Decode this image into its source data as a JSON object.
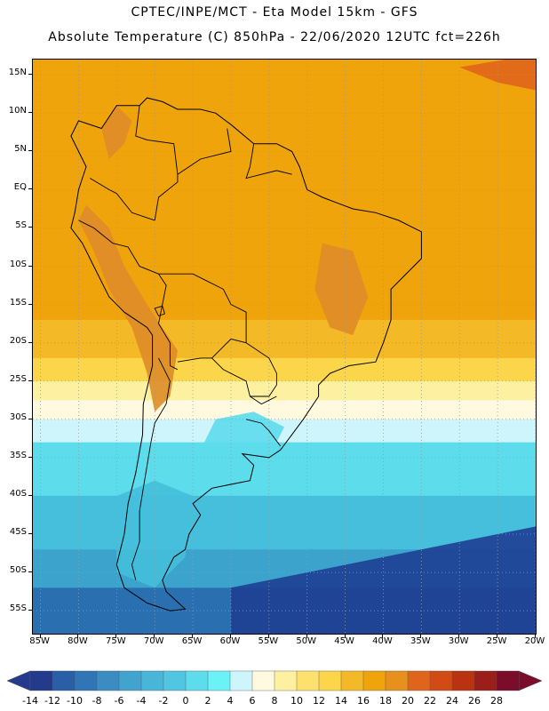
{
  "header": {
    "line1": "CPTEC/INPE/MCT  -   Eta Model 15km  -  GFS",
    "line2": "Absolute Temperature (C) 850hPa - 22/06/2020 12UTC fct=226h"
  },
  "map": {
    "lon_range": [
      -86,
      -20
    ],
    "lat_range": [
      -58,
      17
    ],
    "lat_ticks": [
      {
        "value": 15,
        "label": "15N"
      },
      {
        "value": 10,
        "label": "10N"
      },
      {
        "value": 5,
        "label": "5N"
      },
      {
        "value": 0,
        "label": "EQ"
      },
      {
        "value": -5,
        "label": "5S"
      },
      {
        "value": -10,
        "label": "10S"
      },
      {
        "value": -15,
        "label": "15S"
      },
      {
        "value": -20,
        "label": "20S"
      },
      {
        "value": -25,
        "label": "25S"
      },
      {
        "value": -30,
        "label": "30S"
      },
      {
        "value": -35,
        "label": "35S"
      },
      {
        "value": -40,
        "label": "40S"
      },
      {
        "value": -45,
        "label": "45S"
      },
      {
        "value": -50,
        "label": "50S"
      },
      {
        "value": -55,
        "label": "55S"
      }
    ],
    "lon_ticks": [
      {
        "value": -85,
        "label": "85W"
      },
      {
        "value": -80,
        "label": "80W"
      },
      {
        "value": -75,
        "label": "75W"
      },
      {
        "value": -70,
        "label": "70W"
      },
      {
        "value": -65,
        "label": "65W"
      },
      {
        "value": -60,
        "label": "60W"
      },
      {
        "value": -55,
        "label": "55W"
      },
      {
        "value": -50,
        "label": "50W"
      },
      {
        "value": -45,
        "label": "45W"
      },
      {
        "value": -40,
        "label": "40W"
      },
      {
        "value": -35,
        "label": "35W"
      },
      {
        "value": -30,
        "label": "30W"
      },
      {
        "value": -25,
        "label": "25W"
      },
      {
        "value": -20,
        "label": "20W"
      }
    ],
    "temperature_bands": [
      {
        "lat_north": 17,
        "lat_south": -17,
        "color": "#f0a40c"
      },
      {
        "lat_north": -17,
        "lat_south": -22,
        "color": "#f4b927"
      },
      {
        "lat_north": -22,
        "lat_south": -25,
        "color": "#fcd64a"
      },
      {
        "lat_north": -25,
        "lat_south": -27.5,
        "color": "#fdf0a0"
      },
      {
        "lat_north": -27.5,
        "lat_south": -30,
        "color": "#fff9e0"
      },
      {
        "lat_north": -30,
        "lat_south": -33,
        "color": "#cff5fc"
      },
      {
        "lat_north": -33,
        "lat_south": -40,
        "color": "#5ddcec"
      },
      {
        "lat_north": -40,
        "lat_south": -47,
        "color": "#45bfdc"
      },
      {
        "lat_north": -47,
        "lat_south": -52,
        "color": "#3ba3cc"
      },
      {
        "lat_north": -52,
        "lat_south": -58,
        "color": "#2a6fb0"
      }
    ],
    "features": [
      {
        "name": "andes-high-north",
        "color": "#de8c28",
        "points": [
          [
            -79,
            -2
          ],
          [
            -76,
            -5
          ],
          [
            -74,
            -10
          ],
          [
            -71,
            -15
          ],
          [
            -69,
            -18
          ],
          [
            -67,
            -21
          ],
          [
            -68,
            -27
          ],
          [
            -70,
            -29
          ],
          [
            -71,
            -24
          ],
          [
            -73,
            -18
          ],
          [
            -76,
            -13
          ],
          [
            -78,
            -8
          ],
          [
            -80,
            -4
          ]
        ]
      },
      {
        "name": "venezuela-highlands",
        "color": "#de8c28",
        "points": [
          [
            -77,
            8
          ],
          [
            -75,
            11
          ],
          [
            -73,
            9
          ],
          [
            -74,
            6
          ],
          [
            -76,
            4
          ]
        ]
      },
      {
        "name": "brazil-plateau-warm",
        "color": "#de8c28",
        "points": [
          [
            -48,
            -7
          ],
          [
            -44,
            -8
          ],
          [
            -42,
            -14
          ],
          [
            -44,
            -19
          ],
          [
            -47,
            -18
          ],
          [
            -49,
            -13
          ]
        ]
      },
      {
        "name": "southern-cone-cold",
        "color": "#5ddcec",
        "points": [
          [
            -62,
            -30
          ],
          [
            -57,
            -29
          ],
          [
            -53,
            -31
          ],
          [
            -55,
            -35
          ],
          [
            -60,
            -36
          ],
          [
            -64,
            -34
          ]
        ]
      },
      {
        "name": "patagonia-cold",
        "color": "#45bfdc",
        "points": [
          [
            -75,
            -40
          ],
          [
            -70,
            -38
          ],
          [
            -65,
            -40
          ],
          [
            -66,
            -48
          ],
          [
            -70,
            -52
          ],
          [
            -75,
            -50
          ]
        ]
      },
      {
        "name": "southeast-ocean-deep",
        "color": "#1e3f93",
        "points": [
          [
            -60,
            -52
          ],
          [
            -45,
            -49
          ],
          [
            -30,
            -46
          ],
          [
            -20,
            -44
          ],
          [
            -20,
            -58
          ],
          [
            -60,
            -58
          ]
        ]
      },
      {
        "name": "northeast-hot-spot",
        "color": "#e0651c",
        "points": [
          [
            -30,
            16
          ],
          [
            -24,
            17
          ],
          [
            -20,
            17
          ],
          [
            -20,
            13
          ],
          [
            -25,
            14
          ]
        ]
      }
    ],
    "coastline": [
      [
        -77,
        8
      ],
      [
        -80,
        9
      ],
      [
        -81,
        7
      ],
      [
        -79,
        3
      ],
      [
        -80,
        0
      ],
      [
        -80.5,
        -3
      ],
      [
        -81,
        -5
      ],
      [
        -79.5,
        -7
      ],
      [
        -78,
        -10
      ],
      [
        -76,
        -14
      ],
      [
        -74,
        -16
      ],
      [
        -71,
        -18
      ],
      [
        -70.3,
        -19
      ],
      [
        -70.3,
        -23
      ],
      [
        -71.5,
        -28
      ],
      [
        -71.6,
        -32
      ],
      [
        -72.5,
        -37
      ],
      [
        -73.5,
        -41
      ],
      [
        -74,
        -45
      ],
      [
        -75,
        -49
      ],
      [
        -74,
        -52
      ],
      [
        -71,
        -54
      ],
      [
        -68,
        -55
      ],
      [
        -66,
        -54.8
      ],
      [
        -68.5,
        -52.5
      ],
      [
        -69,
        -51
      ],
      [
        -67.5,
        -48
      ],
      [
        -66,
        -47
      ],
      [
        -65.5,
        -45
      ],
      [
        -64,
        -42.5
      ],
      [
        -65,
        -41
      ],
      [
        -62.5,
        -39
      ],
      [
        -57.5,
        -38
      ],
      [
        -57,
        -36
      ],
      [
        -58.5,
        -34.5
      ],
      [
        -55,
        -35
      ],
      [
        -53.5,
        -34
      ],
      [
        -52,
        -32
      ],
      [
        -50.5,
        -30
      ],
      [
        -48.5,
        -27
      ],
      [
        -48.5,
        -25.5
      ],
      [
        -47,
        -24
      ],
      [
        -44.5,
        -23
      ],
      [
        -41,
        -22.5
      ],
      [
        -40,
        -20
      ],
      [
        -39,
        -17
      ],
      [
        -39,
        -13
      ],
      [
        -37.5,
        -11.5
      ],
      [
        -35,
        -9
      ],
      [
        -35,
        -5.5
      ],
      [
        -38,
        -4
      ],
      [
        -41,
        -3
      ],
      [
        -44,
        -2.5
      ],
      [
        -48,
        -1
      ],
      [
        -50,
        0
      ],
      [
        -51,
        3
      ],
      [
        -52,
        5
      ],
      [
        -54,
        6
      ],
      [
        -57,
        6
      ],
      [
        -60,
        8.5
      ],
      [
        -62,
        10
      ],
      [
        -64,
        10.5
      ],
      [
        -67,
        10.5
      ],
      [
        -69,
        11.5
      ],
      [
        -71,
        12
      ],
      [
        -72,
        11
      ],
      [
        -75,
        11
      ],
      [
        -76,
        9.5
      ],
      [
        -77,
        8
      ]
    ],
    "borders": [
      [
        [
          -78.5,
          1.5
        ],
        [
          -76,
          0
        ],
        [
          -75,
          -0.5
        ],
        [
          -73,
          -3
        ],
        [
          -70,
          -4
        ]
      ],
      [
        [
          -80,
          -4
        ],
        [
          -78,
          -5
        ],
        [
          -75.5,
          -7
        ],
        [
          -73.5,
          -7.5
        ],
        [
          -72,
          -10
        ],
        [
          -69.5,
          -11
        ]
      ],
      [
        [
          -69.5,
          -11
        ],
        [
          -68.5,
          -12.5
        ],
        [
          -69,
          -15
        ],
        [
          -69.5,
          -17.5
        ]
      ],
      [
        [
          -69.5,
          -17.5
        ],
        [
          -68,
          -20
        ],
        [
          -68,
          -23
        ],
        [
          -67,
          -23.5
        ]
      ],
      [
        [
          -67,
          -22.5
        ],
        [
          -64,
          -22
        ],
        [
          -62.5,
          -22
        ],
        [
          -60,
          -19.5
        ],
        [
          -58,
          -20
        ]
      ],
      [
        [
          -58,
          -20
        ],
        [
          -58,
          -16
        ],
        [
          -60,
          -15
        ],
        [
          -61,
          -13
        ],
        [
          -63,
          -12
        ],
        [
          -65,
          -11
        ],
        [
          -68,
          -11
        ],
        [
          -69.5,
          -11
        ]
      ],
      [
        [
          -62.5,
          -22
        ],
        [
          -61,
          -23.5
        ],
        [
          -58,
          -25
        ],
        [
          -57.5,
          -27
        ],
        [
          -55,
          -27
        ],
        [
          -54,
          -25.5
        ]
      ],
      [
        [
          -58,
          -20
        ],
        [
          -55,
          -22
        ],
        [
          -54,
          -24
        ],
        [
          -54,
          -25.5
        ]
      ],
      [
        [
          -58,
          -30
        ],
        [
          -56,
          -30.5
        ],
        [
          -55,
          -31.5
        ],
        [
          -53.5,
          -33.5
        ]
      ],
      [
        [
          -57.5,
          -27
        ],
        [
          -56,
          -28
        ],
        [
          -55,
          -27.5
        ],
        [
          -54,
          -27
        ]
      ],
      [
        [
          -70,
          -4
        ],
        [
          -69.5,
          -1
        ],
        [
          -67,
          1
        ],
        [
          -67,
          2
        ],
        [
          -64,
          4
        ],
        [
          -62,
          4.5
        ],
        [
          -60,
          5
        ],
        [
          -60.5,
          8
        ]
      ],
      [
        [
          -72,
          11
        ],
        [
          -72.5,
          7
        ],
        [
          -71,
          6.5
        ],
        [
          -67.5,
          6
        ],
        [
          -67,
          2
        ]
      ],
      [
        [
          -57,
          6
        ],
        [
          -57.5,
          3
        ],
        [
          -58,
          1.5
        ],
        [
          -56,
          2
        ],
        [
          -54,
          2.5
        ],
        [
          -52,
          2
        ]
      ],
      [
        [
          -69.5,
          -22
        ],
        [
          -68,
          -25
        ],
        [
          -68.5,
          -28
        ],
        [
          -70,
          -30.5
        ],
        [
          -70.5,
          -33
        ],
        [
          -71,
          -36
        ],
        [
          -71.5,
          -39
        ],
        [
          -72,
          -42
        ],
        [
          -72,
          -46
        ],
        [
          -73,
          -49
        ],
        [
          -72.5,
          -51
        ]
      ]
    ],
    "lakes": [
      {
        "name": "lake-titicaca",
        "points": [
          [
            -70,
            -15.5
          ],
          [
            -69,
            -15.2
          ],
          [
            -68.7,
            -16.2
          ],
          [
            -69.5,
            -16.5
          ]
        ]
      }
    ]
  },
  "colorbar": {
    "labels": [
      "-14",
      "-12",
      "-10",
      "-8",
      "-6",
      "-4",
      "-2",
      "0",
      "2",
      "4",
      "6",
      "8",
      "10",
      "12",
      "14",
      "16",
      "18",
      "20",
      "22",
      "24",
      "26",
      "28"
    ],
    "low_color": "#243a8c",
    "high_color": "#7b0c2a",
    "colors": [
      "#243a8c",
      "#2a5ea6",
      "#3075b5",
      "#3b8cc3",
      "#42a3cf",
      "#49b6d9",
      "#51c6e2",
      "#5ddcec",
      "#6af2f7",
      "#cff5fc",
      "#fff9e0",
      "#fdf0a0",
      "#fde06e",
      "#fcd64a",
      "#f4b927",
      "#f0a40c",
      "#e8901e",
      "#e0651c",
      "#d24a14",
      "#b93310",
      "#9a1e1a",
      "#7b0c2a"
    ]
  }
}
